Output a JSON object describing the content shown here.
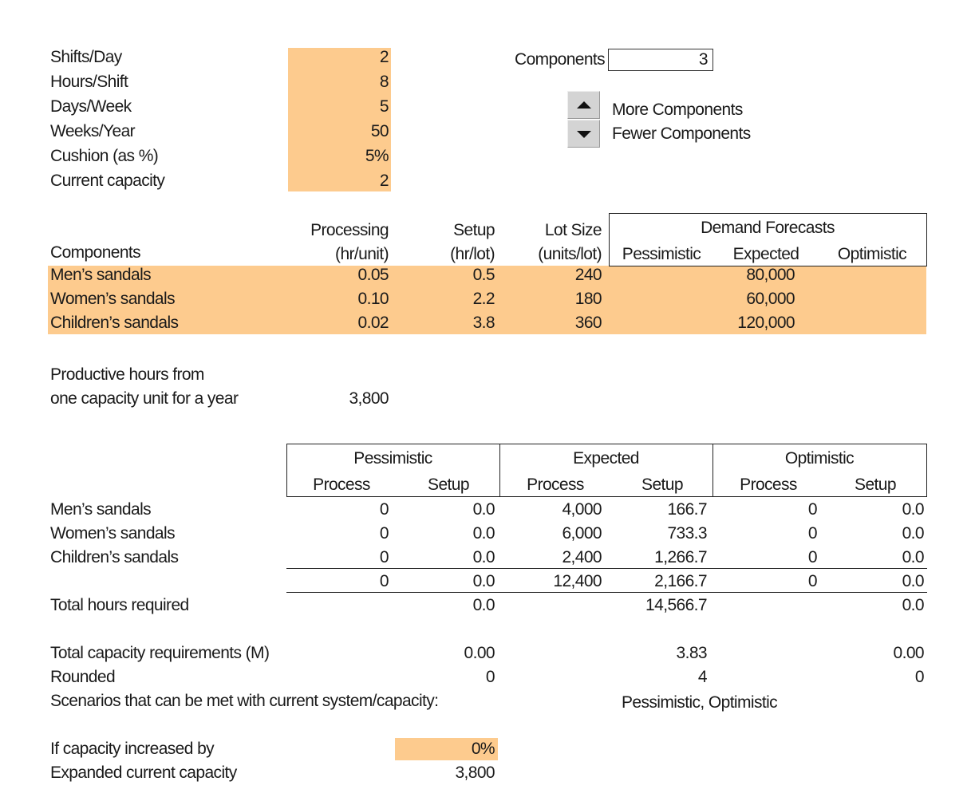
{
  "colors": {
    "input_fill": "#fdcb8e"
  },
  "params": [
    {
      "label": "Shifts/Day",
      "value": "2"
    },
    {
      "label": "Hours/Shift",
      "value": "8"
    },
    {
      "label": "Days/Week",
      "value": "5"
    },
    {
      "label": "Weeks/Year",
      "value": "50"
    },
    {
      "label": "Cushion (as %)",
      "value": "5%"
    },
    {
      "label": "Current capacity",
      "value": "2"
    }
  ],
  "components_control": {
    "label": "Components",
    "value": "3",
    "more_label": "More Components",
    "fewer_label": "Fewer Components",
    "more_icon": "triangle-up-icon",
    "fewer_icon": "triangle-down-icon"
  },
  "input_table": {
    "col_components": "Components",
    "col_processing": [
      "Processing",
      "(hr/unit)"
    ],
    "col_setup": [
      "Setup",
      "(hr/lot)"
    ],
    "col_lot": [
      "Lot Size",
      "(units/lot)"
    ],
    "demand_title": "Demand Forecasts",
    "demand_cols": [
      "Pessimistic",
      "Expected",
      "Optimistic"
    ],
    "rows": [
      {
        "name": "Men’s sandals",
        "processing": "0.05",
        "setup": "0.5",
        "lot": "240",
        "pessimistic": "",
        "expected": "80,000",
        "optimistic": ""
      },
      {
        "name": "Women’s sandals",
        "processing": "0.10",
        "setup": "2.2",
        "lot": "180",
        "pessimistic": "",
        "expected": "60,000",
        "optimistic": ""
      },
      {
        "name": "Children’s sandals",
        "processing": "0.02",
        "setup": "3.8",
        "lot": "360",
        "pessimistic": "",
        "expected": "120,000",
        "optimistic": ""
      }
    ]
  },
  "productive": {
    "label1": "Productive hours from",
    "label2": "one capacity unit for a year",
    "value": "3,800"
  },
  "results": {
    "scenarios": [
      "Pessimistic",
      "Expected",
      "Optimistic"
    ],
    "sub_cols": [
      "Process",
      "Setup"
    ],
    "rows": [
      {
        "name": "Men’s sandals",
        "values": [
          "0",
          "0.0",
          "4,000",
          "166.7",
          "0",
          "0.0"
        ]
      },
      {
        "name": "Women’s sandals",
        "values": [
          "0",
          "0.0",
          "6,000",
          "733.3",
          "0",
          "0.0"
        ]
      },
      {
        "name": "Children’s sandals",
        "values": [
          "0",
          "0.0",
          "2,400",
          "1,266.7",
          "0",
          "0.0"
        ]
      }
    ],
    "subtotals": [
      "0",
      "0.0",
      "12,400",
      "2,166.7",
      "0",
      "0.0"
    ],
    "total_label": "Total hours required",
    "totals": [
      "0.0",
      "14,566.7",
      "0.0"
    ],
    "capacity_label": "Total capacity requirements (M)",
    "capacity": [
      "0.00",
      "3.83",
      "0.00"
    ],
    "rounded_label": "Rounded",
    "rounded": [
      "0",
      "4",
      "0"
    ],
    "scenarios_label": "Scenarios that can be met with current system/capacity:",
    "scenarios_met": "Pessimistic, Optimistic"
  },
  "expansion": {
    "increase_label": "If capacity increased by",
    "increase_value": "0%",
    "expanded_label": "Expanded current capacity",
    "expanded_value": "3,800"
  }
}
